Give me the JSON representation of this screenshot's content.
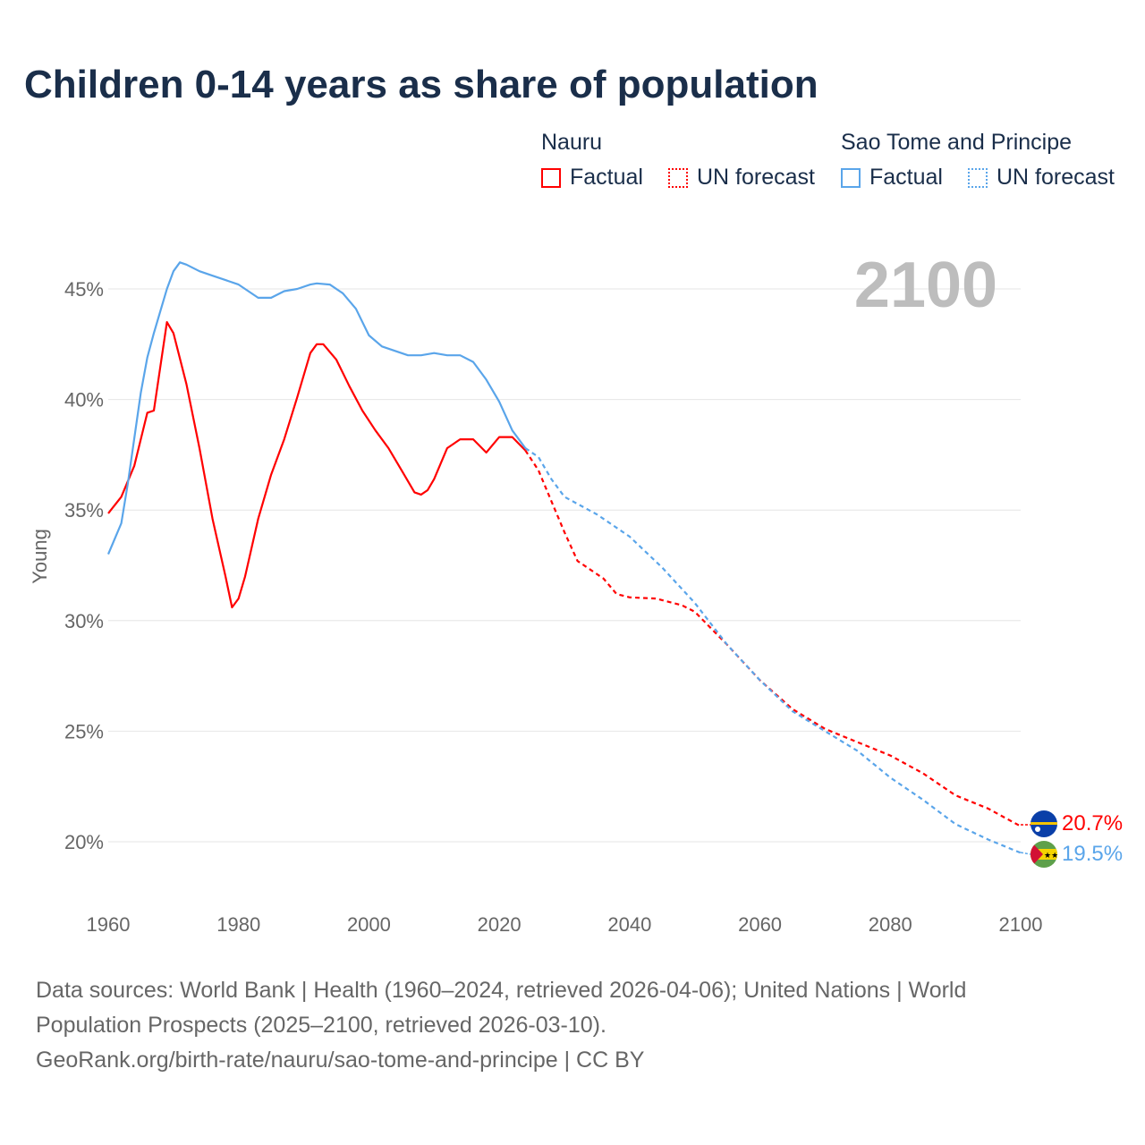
{
  "title": "Children 0-14 years as share of population",
  "legend": {
    "groups": [
      {
        "name": "Nauru",
        "factual": "Factual",
        "forecast": "UN forecast",
        "color": "#ff0000"
      },
      {
        "name": "Sao Tome and Principe",
        "factual": "Factual",
        "forecast": "UN forecast",
        "color": "#5aa5ea"
      }
    ]
  },
  "year_overlay": "2100",
  "end_labels": {
    "nauru": "20.7%",
    "stp": "19.5%"
  },
  "footer": {
    "line1": "Data sources: World Bank | Health (1960–2024, retrieved 2026-04-06); United Nations | World",
    "line2": "Population Prospects (2025–2100, retrieved 2026-03-10).",
    "line3": "GeoRank.org/birth-rate/nauru/sao-tome-and-principe | CC BY"
  },
  "chart_data": {
    "type": "line",
    "title": "Children 0-14 years as share of population",
    "xlabel": "",
    "ylabel": "Young",
    "xlim": [
      1960,
      2100
    ],
    "ylim": [
      18,
      47
    ],
    "xticks": [
      1960,
      1980,
      2000,
      2020,
      2040,
      2060,
      2080,
      2100
    ],
    "xtick_labels": [
      "1960",
      "1980",
      "2000",
      "2020",
      "2040",
      "2060",
      "2080",
      "2100"
    ],
    "yticks": [
      20,
      25,
      30,
      35,
      40,
      45
    ],
    "ytick_labels": [
      "20%",
      "25%",
      "30%",
      "35%",
      "40%",
      "45%"
    ],
    "grid": true,
    "legend_position": "top-right",
    "series": [
      {
        "name": "Nauru Factual",
        "color": "#ff0000",
        "dashed": false,
        "x": [
          1960,
          1962,
          1964,
          1966,
          1967,
          1969,
          1970,
          1972,
          1974,
          1976,
          1978,
          1979,
          1980,
          1981,
          1983,
          1985,
          1987,
          1989,
          1991,
          1992,
          1993,
          1995,
          1997,
          1999,
          2001,
          2003,
          2005,
          2007,
          2008,
          2009,
          2010,
          2012,
          2014,
          2016,
          2017,
          2018,
          2020,
          2022,
          2024
        ],
        "y": [
          34.85,
          35.6,
          37.0,
          39.4,
          39.5,
          43.5,
          43.0,
          40.7,
          37.8,
          34.6,
          32.0,
          30.6,
          31.0,
          32.0,
          34.6,
          36.6,
          38.2,
          40.1,
          42.1,
          42.5,
          42.5,
          41.8,
          40.6,
          39.5,
          38.6,
          37.8,
          36.8,
          35.8,
          35.7,
          35.9,
          36.4,
          37.8,
          38.2,
          38.2,
          37.9,
          37.6,
          38.3,
          38.3,
          37.7
        ]
      },
      {
        "name": "Nauru UN forecast",
        "color": "#ff0000",
        "dashed": true,
        "x": [
          2024,
          2026,
          2028,
          2030,
          2032,
          2036,
          2038,
          2040,
          2044,
          2048,
          2050,
          2055,
          2060,
          2065,
          2070,
          2075,
          2080,
          2085,
          2090,
          2095,
          2100
        ],
        "y": [
          37.7,
          36.8,
          35.4,
          34.0,
          32.7,
          31.9,
          31.2,
          31.05,
          31.0,
          30.7,
          30.4,
          28.9,
          27.3,
          26.0,
          25.1,
          24.5,
          23.9,
          23.1,
          22.1,
          21.5,
          20.7
        ]
      },
      {
        "name": "Sao Tome and Principe Factual",
        "color": "#5aa5ea",
        "dashed": false,
        "x": [
          1960,
          1962,
          1963,
          1965,
          1966,
          1967,
          1968,
          1969,
          1970,
          1971,
          1972,
          1974,
          1976,
          1978,
          1980,
          1983,
          1985,
          1987,
          1989,
          1991,
          1992,
          1994,
          1996,
          1998,
          2000,
          2002,
          2006,
          2008,
          2010,
          2012,
          2014,
          2016,
          2018,
          2020,
          2022,
          2024
        ],
        "y": [
          33.0,
          34.4,
          36.2,
          40.3,
          41.9,
          43.0,
          44.0,
          45.0,
          45.8,
          46.2,
          46.1,
          45.8,
          45.6,
          45.4,
          45.2,
          44.6,
          44.6,
          44.9,
          45.0,
          45.2,
          45.25,
          45.2,
          44.8,
          44.1,
          42.9,
          42.4,
          42.0,
          42.0,
          42.1,
          42.0,
          42.0,
          41.7,
          40.9,
          39.9,
          38.6,
          37.8
        ]
      },
      {
        "name": "Sao Tome and Principe UN forecast",
        "color": "#5aa5ea",
        "dashed": true,
        "x": [
          2024,
          2026,
          2028,
          2030,
          2035,
          2040,
          2045,
          2050,
          2055,
          2060,
          2065,
          2070,
          2075,
          2080,
          2085,
          2090,
          2095,
          2100
        ],
        "y": [
          37.8,
          37.4,
          36.4,
          35.6,
          34.8,
          33.8,
          32.4,
          30.8,
          28.9,
          27.3,
          25.9,
          25.0,
          24.1,
          22.9,
          21.9,
          20.8,
          20.1,
          19.5
        ]
      }
    ]
  }
}
